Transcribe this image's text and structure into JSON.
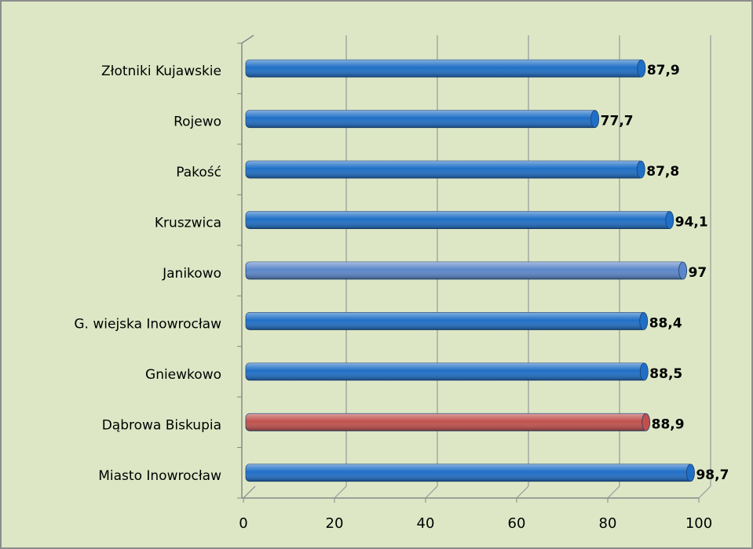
{
  "chart_data": {
    "type": "bar",
    "orientation": "horizontal",
    "categories": [
      "Złotniki Kujawskie",
      "Rojewo",
      "Pakość",
      "Kruszwica",
      "Janikowo",
      "G. wiejska Inowrocław",
      "Gniewkowo",
      "Dąbrowa Biskupia",
      "Miasto Inowrocław"
    ],
    "values": [
      87.9,
      77.7,
      87.8,
      94.1,
      97,
      88.4,
      88.5,
      88.9,
      98.7
    ],
    "value_labels": [
      "87,9",
      "77,7",
      "87,8",
      "94,1",
      "97",
      "88,4",
      "88,5",
      "88,9",
      "98,7"
    ],
    "colors": [
      "#1f6fc6",
      "#1f6fc6",
      "#1f6fc6",
      "#1f6fc6",
      "#5b86c9",
      "#1f6fc6",
      "#1f6fc6",
      "#c0504d",
      "#1f6fc6"
    ],
    "xlim": [
      0,
      100
    ],
    "xticks": [
      0,
      20,
      40,
      60,
      80,
      100
    ],
    "grid": true
  }
}
